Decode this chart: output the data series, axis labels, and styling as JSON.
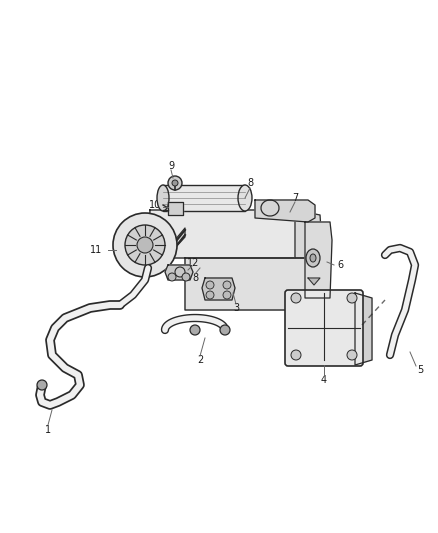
{
  "background_color": "#ffffff",
  "fig_width": 4.38,
  "fig_height": 5.33,
  "dpi": 100,
  "line_color": "#2a2a2a",
  "fill_color": "#f5f5f5",
  "dark_fill": "#d8d8d8",
  "leader_color": "#666666",
  "text_color": "#1a1a1a",
  "label_fontsize": 7.0,
  "hose_outer_lw": 5.0,
  "hose_inner_lw": 3.2,
  "hose_inner_color": "#f8f8f8"
}
